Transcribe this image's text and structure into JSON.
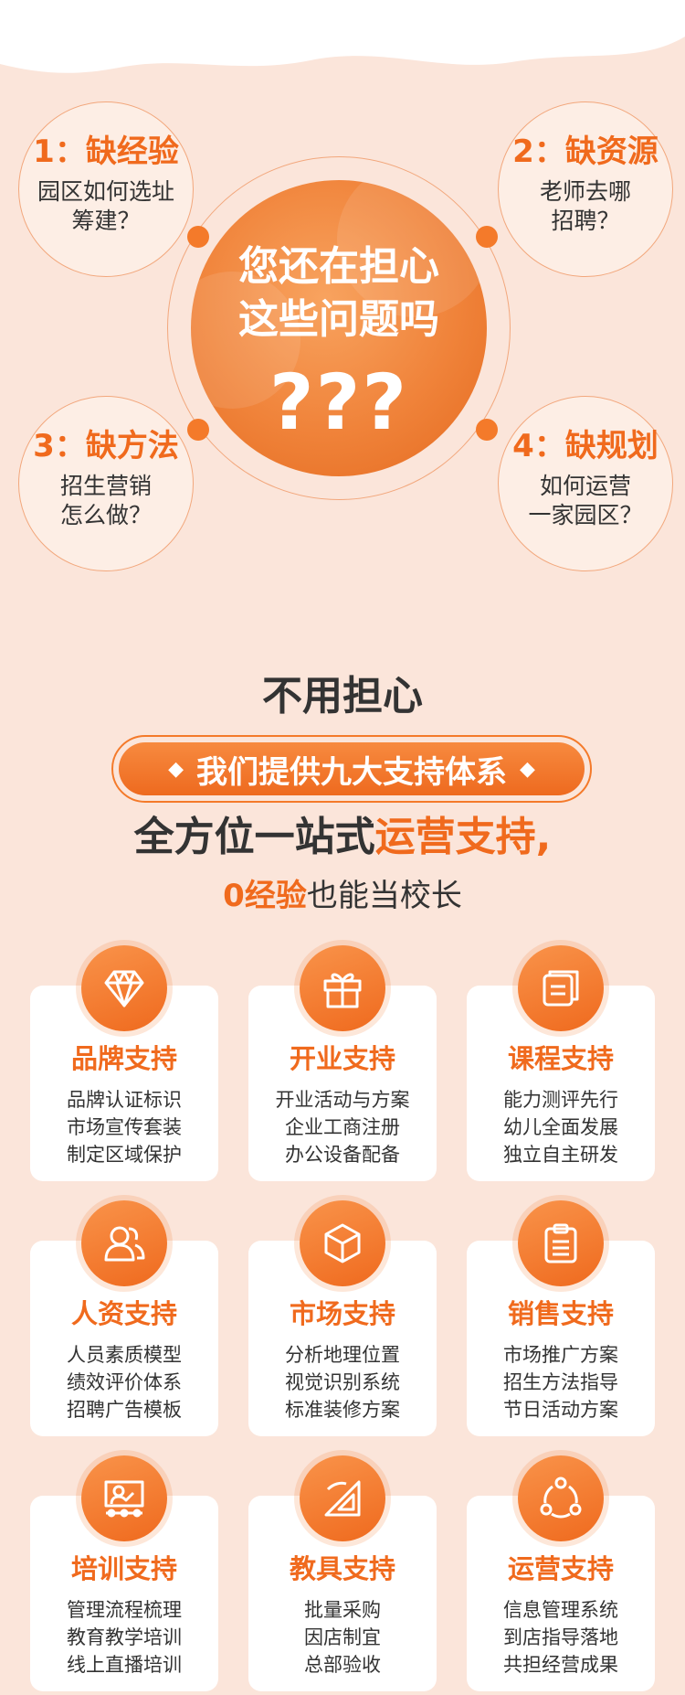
{
  "worries": [
    {
      "title": "1：缺经验",
      "desc": "园区如何选址\n筹建？"
    },
    {
      "title": "2：缺资源",
      "desc": "老师去哪\n招聘？"
    },
    {
      "title": "3：缺方法",
      "desc": "招生营销\n怎么做？"
    },
    {
      "title": "4：缺规划",
      "desc": "如何运营\n一家园区？"
    }
  ],
  "center": {
    "text": "您还在担心\n这些问题吗",
    "marks": "???"
  },
  "heading": {
    "no_worry": "不用担心",
    "pill": "我们提供九大支持体系",
    "diamond": "◆",
    "slogan_plain": "全方位一站式",
    "slogan_highlight": "运营支持,",
    "sub_highlight": "0经验",
    "sub_plain": "也能当校长"
  },
  "cards": [
    {
      "icon": "diamond-icon",
      "title": "品牌支持",
      "lines": [
        "品牌认证标识",
        "市场宣传套装",
        "制定区域保护"
      ]
    },
    {
      "icon": "gift-icon",
      "title": "开业支持",
      "lines": [
        "开业活动与方案",
        "企业工商注册",
        "办公设备配备"
      ]
    },
    {
      "icon": "book-icon",
      "title": "课程支持",
      "lines": [
        "能力测评先行",
        "幼儿全面发展",
        "独立自主研发"
      ]
    },
    {
      "icon": "people-icon",
      "title": "人资支持",
      "lines": [
        "人员素质模型",
        "绩效评价体系",
        "招聘广告模板"
      ]
    },
    {
      "icon": "cube-icon",
      "title": "市场支持",
      "lines": [
        "分析地理位置",
        "视觉识别系统",
        "标准装修方案"
      ]
    },
    {
      "icon": "clipboard-icon",
      "title": "销售支持",
      "lines": [
        "市场推广方案",
        "招生方法指导",
        "节日活动方案"
      ]
    },
    {
      "icon": "teacher-board-icon",
      "title": "培训支持",
      "lines": [
        "管理流程梳理",
        "教育教学培训",
        "线上直播培训"
      ]
    },
    {
      "icon": "set-square-icon",
      "title": "教具支持",
      "lines": [
        "批量采购",
        "因店制宜",
        "总部验收"
      ]
    },
    {
      "icon": "cycle-icon",
      "title": "运营支持",
      "lines": [
        "信息管理系统",
        "到店指导落地",
        "共担经营成果"
      ]
    }
  ],
  "colors": {
    "background": "#fbe5da",
    "accent": "#f06a1d",
    "card": "#ffffff",
    "text": "#333333"
  }
}
